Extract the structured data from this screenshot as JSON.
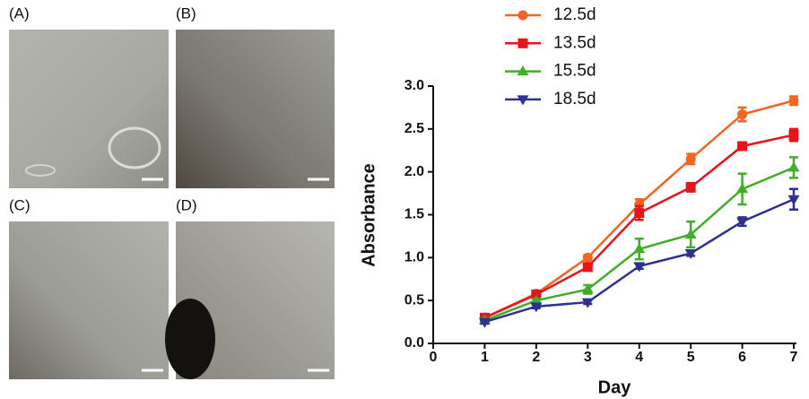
{
  "panels": [
    "(A)",
    "(B)",
    "(C)",
    "(D)"
  ],
  "chart_data": {
    "type": "line",
    "x_label": "Day",
    "y_label": "Absorbance",
    "x": [
      1,
      2,
      3,
      4,
      5,
      6,
      7
    ],
    "xlim": [
      0,
      7
    ],
    "xticks": [
      0,
      1,
      2,
      3,
      4,
      5,
      6,
      7
    ],
    "ylim": [
      0,
      3
    ],
    "yticks": [
      {
        "value": 0,
        "label": "0.0"
      },
      0.5,
      {
        "value": 1,
        "label": "1.0"
      },
      1.5,
      {
        "value": 2,
        "label": "2.0"
      },
      2.5,
      {
        "value": 3,
        "label": "3.0"
      }
    ],
    "series": [
      {
        "name": "12.5d",
        "color": "#f26522",
        "marker": "circle",
        "values": [
          0.3,
          0.58,
          1.0,
          1.62,
          2.15,
          2.67,
          2.83
        ],
        "errors": [
          0.02,
          0.03,
          0.03,
          0.06,
          0.06,
          0.08,
          0.05
        ]
      },
      {
        "name": "13.5d",
        "color": "#e8141c",
        "marker": "square",
        "values": [
          0.3,
          0.57,
          0.89,
          1.52,
          1.82,
          2.3,
          2.43
        ],
        "errors": [
          0.02,
          0.03,
          0.03,
          0.08,
          0.05,
          0.03,
          0.07
        ]
      },
      {
        "name": "15.5d",
        "color": "#3fae29",
        "marker": "triangle-up",
        "values": [
          0.27,
          0.5,
          0.63,
          1.1,
          1.27,
          1.8,
          2.05
        ],
        "errors": [
          0.02,
          0.02,
          0.05,
          0.12,
          0.15,
          0.18,
          0.12
        ]
      },
      {
        "name": "18.5d",
        "color": "#2e3192",
        "marker": "triangle-down",
        "values": [
          0.25,
          0.43,
          0.48,
          0.9,
          1.05,
          1.42,
          1.68
        ],
        "errors": [
          0.02,
          0.02,
          0.02,
          0.03,
          0.03,
          0.05,
          0.12
        ]
      }
    ]
  }
}
